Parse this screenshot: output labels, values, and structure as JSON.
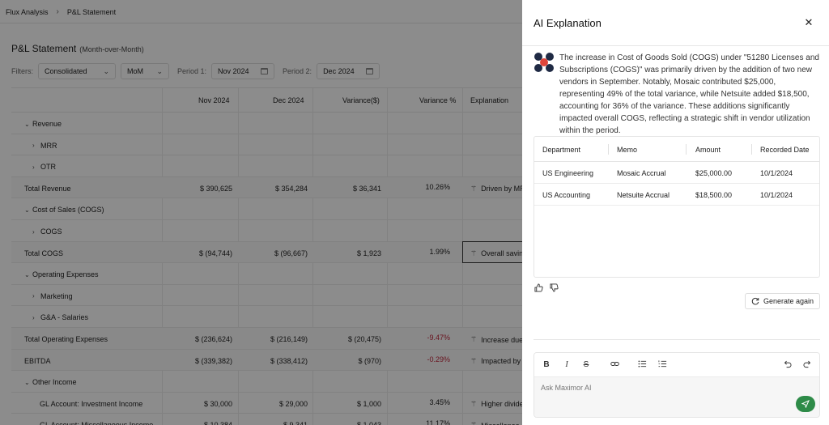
{
  "breadcrumb": {
    "items": [
      "Flux Analysis",
      "P&L Statement"
    ]
  },
  "page": {
    "title": "P&L Statement",
    "subtitle": "(Month-over-Month)"
  },
  "filters": {
    "label": "Filters:",
    "scope": "Consolidated",
    "mode": "MoM",
    "period1_label": "Period 1:",
    "period1": "Nov 2024",
    "period2_label": "Period 2:",
    "period2": "Dec 2024"
  },
  "grid": {
    "headers": {
      "p1": "Nov 2024",
      "p2": "Dec 2024",
      "var": "Variance($)",
      "varpct": "Variance %",
      "expl": "Explanation"
    },
    "rows": [
      {
        "label": "Revenue",
        "level": 0,
        "caret": "down"
      },
      {
        "label": "MRR",
        "level": 1,
        "caret": "right"
      },
      {
        "label": "OTR",
        "level": 1,
        "caret": "right"
      },
      {
        "label": "Total Revenue",
        "total": true,
        "p1": "$ 390,625",
        "p2": "$ 354,284",
        "var": "$ 36,341",
        "pct": "10.26%",
        "expl": "Driven by MR"
      },
      {
        "label": "Cost of Sales (COGS)",
        "level": 0,
        "caret": "down"
      },
      {
        "label": "COGS",
        "level": 1,
        "caret": "right"
      },
      {
        "label": "Total COGS",
        "total": true,
        "p1": "$ (94,744)",
        "p2": "$ (96,667)",
        "var": "$ 1,923",
        "pct": "1.99%",
        "expl": "Overall savin"
      },
      {
        "label": "Operating Expenses",
        "level": 0,
        "caret": "down"
      },
      {
        "label": "Marketing",
        "level": 1,
        "caret": "right"
      },
      {
        "label": "G&A - Salaries",
        "level": 1,
        "caret": "right"
      },
      {
        "label": "Total Operating Expenses",
        "total": true,
        "p1": "$ (236,624)",
        "p2": "$ (216,149)",
        "var": "$ (20,475)",
        "pct": "-9.47%",
        "neg": true,
        "expl": "Increase due"
      },
      {
        "label": "EBITDA",
        "total": true,
        "p1": "$ (339,382)",
        "p2": "$ (338,412)",
        "var": "$ (970)",
        "pct": "-0.29%",
        "neg": true,
        "expl": "Impacted by"
      },
      {
        "label": "Other Income",
        "level": 0,
        "caret": "down"
      },
      {
        "label": "GL Account: Investment Income",
        "level": 1,
        "p1": "$ 30,000",
        "p2": "$ 29,000",
        "var": "$ 1,000",
        "pct": "3.45%",
        "expl": "Higher divide"
      },
      {
        "label": "GL Account: Miscellaneous Income",
        "level": 1,
        "p1": "$ 10,384",
        "p2": "$ 9,341",
        "var": "$ 1,043",
        "pct": "11.17%",
        "expl": "Miscellaneo"
      }
    ]
  },
  "panel": {
    "title": "AI Explanation",
    "close_icon": "close-icon",
    "explanation": "The increase in Cost of Goods Sold (COGS) under \"51280 Licenses and Subscriptions (COGS)\" was primarily driven by the addition of two new vendors in September. Notably, Mosaic contributed $25,000, representing 49% of the total variance, while Netsuite added $18,500, accounting for 36% of the variance. These additions significantly impacted overall COGS, reflecting a strategic shift in vendor utilization within the period.",
    "table": {
      "headers": [
        "Department",
        "Memo",
        "Amount",
        "Recorded Date"
      ],
      "rows": [
        [
          "US Engineering",
          "Mosaic Accrual",
          "$25,000.00",
          "10/1/2024"
        ],
        [
          "US Accounting",
          "Netsuite Accrual",
          "$18,500.00",
          "10/1/2024"
        ]
      ]
    },
    "generate_label": "Generate again",
    "compose_placeholder": "Ask Maximor AI",
    "send_color": "#2e8b48"
  }
}
